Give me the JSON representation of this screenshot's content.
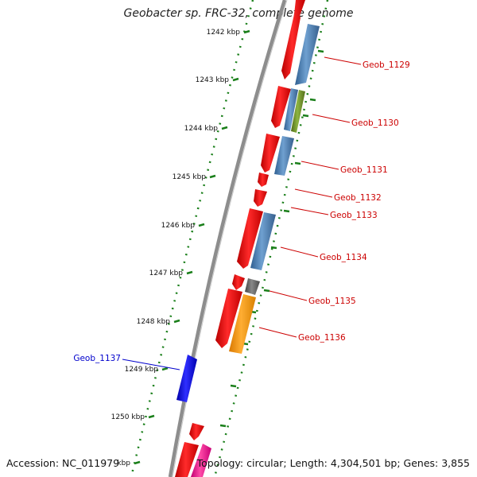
{
  "title": "Geobacter sp. FRC-32, complete genome",
  "footer": {
    "accession": "Accession: NC_011979",
    "topology": "Topology: circular; Length: 4,304,501 bp; Genes: 3,855"
  },
  "colors": {
    "forward_cds": "#ee0000",
    "reverse_cds": "#4a7fb5",
    "orange_cds": "#ff9900",
    "olive_cds": "#6b8e23",
    "gray_cds": "#666666",
    "highlight_cds": "#0000ee",
    "pink_cds": "#ff1493",
    "ruler": "#1a7f1a",
    "backbone": "#888888",
    "label_red": "#cc0000",
    "label_blue": "#0000cc"
  },
  "ruler_ticks": [
    {
      "label": "1242 kbp"
    },
    {
      "label": "1243 kbp"
    },
    {
      "label": "1244 kbp"
    },
    {
      "label": "1245 kbp"
    },
    {
      "label": "1246 kbp"
    },
    {
      "label": "1247 kbp"
    },
    {
      "label": "1248 kbp"
    },
    {
      "label": "1249 kbp"
    },
    {
      "label": "1250 kbp"
    },
    {
      "label": "kbp"
    }
  ],
  "gene_labels": [
    {
      "name": "Geob_1129"
    },
    {
      "name": "Geob_1130"
    },
    {
      "name": "Geob_1131"
    },
    {
      "name": "Geob_1132"
    },
    {
      "name": "Geob_1133"
    },
    {
      "name": "Geob_1134"
    },
    {
      "name": "Geob_1135"
    },
    {
      "name": "Geob_1136"
    },
    {
      "name": "Geob_1137"
    }
  ]
}
